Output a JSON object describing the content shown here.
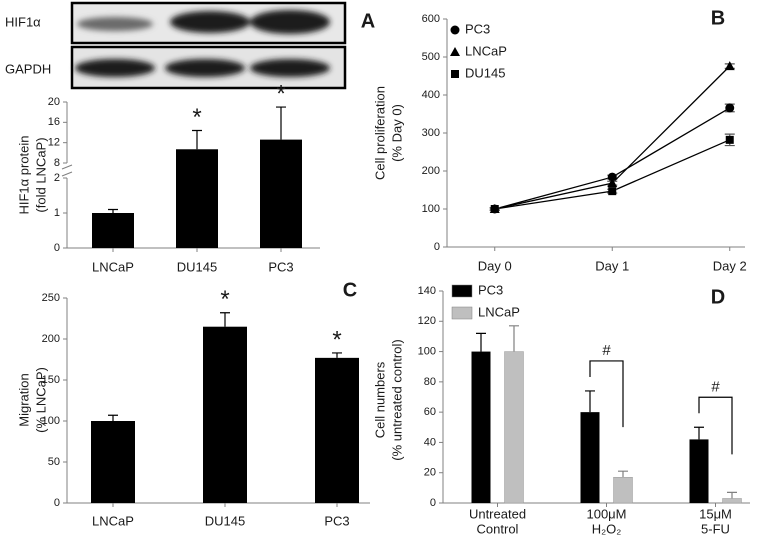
{
  "blot": {
    "rows": [
      "HIF1α",
      "GAPDH"
    ]
  },
  "chart_data": [
    {
      "panel": "A",
      "type": "bar",
      "ylabel": [
        "HIF1α protein",
        "(fold LNCaP)"
      ],
      "categories": [
        "LNCaP",
        "DU145",
        "PC3"
      ],
      "values": [
        1,
        10.7,
        12.6
      ],
      "errors": [
        0.1,
        3.7,
        6.4
      ],
      "color": "#000000",
      "ylim": [
        0,
        20
      ],
      "yticks": [
        0,
        1,
        2,
        8,
        12,
        16,
        20
      ],
      "axis_break": [
        2,
        8
      ],
      "annotations": [
        null,
        "*",
        "*"
      ]
    },
    {
      "panel": "B",
      "type": "line",
      "ylabel": [
        "Cell proliferation",
        "(% Day 0)"
      ],
      "categories": [
        "Day 0",
        "Day 1",
        "Day 2"
      ],
      "series": [
        {
          "name": "PC3",
          "color": "#000000",
          "marker": "circle",
          "values": [
            100,
            184,
            366
          ],
          "errors": [
            3,
            5,
            10
          ]
        },
        {
          "name": "LNCaP",
          "color": "#000000",
          "marker": "triangle",
          "values": [
            100,
            168,
            476
          ],
          "errors": [
            3,
            5,
            6
          ]
        },
        {
          "name": "DU145",
          "color": "#000000",
          "marker": "square",
          "values": [
            100,
            147,
            282
          ],
          "errors": [
            3,
            5,
            15
          ]
        }
      ],
      "ylim": [
        0,
        600
      ],
      "yticks": [
        0,
        100,
        200,
        300,
        400,
        500,
        600
      ],
      "legend": "upper left"
    },
    {
      "panel": "C",
      "type": "bar",
      "ylabel": [
        "Migration",
        "(% LNCaP)"
      ],
      "categories": [
        "LNCaP",
        "DU145",
        "PC3"
      ],
      "values": [
        100,
        215,
        177
      ],
      "errors": [
        7,
        17,
        6
      ],
      "color": "#000000",
      "ylim": [
        0,
        250
      ],
      "yticks": [
        0,
        50,
        100,
        150,
        200,
        250
      ],
      "annotations": [
        null,
        "*",
        "*"
      ]
    },
    {
      "panel": "D",
      "type": "bar",
      "ylabel": [
        "Cell numbers",
        "(% untreated control)"
      ],
      "categories": [
        [
          "Untreated",
          "Control"
        ],
        [
          "100μM",
          "H₂O₂"
        ],
        [
          "15μM",
          "5-FU"
        ]
      ],
      "series": [
        {
          "name": "PC3",
          "color": "#000000",
          "values": [
            100,
            60,
            42
          ],
          "errors": [
            12,
            14,
            8
          ]
        },
        {
          "name": "LNCaP",
          "color": "#bfbfbf",
          "values": [
            100,
            17,
            3
          ],
          "errors": [
            17,
            4,
            4
          ]
        }
      ],
      "ylim": [
        0,
        140
      ],
      "yticks": [
        0,
        20,
        40,
        60,
        80,
        100,
        120,
        140
      ],
      "annotations": [
        null,
        "#",
        "#"
      ],
      "legend": "upper left"
    }
  ]
}
